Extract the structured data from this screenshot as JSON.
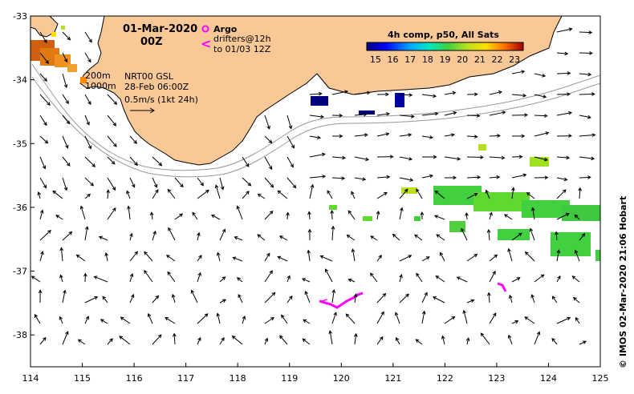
{
  "map": {
    "date_title": "01-Mar-2020",
    "time_title": "00Z",
    "legend_argo": "Argo",
    "legend_drifters_line1": "drifters@12h",
    "legend_drifters_line2": "to 01/03 12Z",
    "colorbar_title": "4h comp, p50, All Sats",
    "colorbar_ticks": [
      "15",
      "16",
      "17",
      "18",
      "19",
      "20",
      "21",
      "22",
      "23"
    ],
    "isobath_200": "200m",
    "isobath_1000": "1000m",
    "nrt_label": "NRT00 GSL",
    "nrt_date": "28-Feb 06:00Z",
    "scale_label": "0.5m/s (1kt 24h)",
    "credit": "© IMOS 02-Mar-2020 21:06 Hobart",
    "x_ticks": [
      "114",
      "115",
      "116",
      "117",
      "118",
      "119",
      "120",
      "121",
      "122",
      "123",
      "124",
      "125"
    ],
    "y_ticks": [
      "-33",
      "-34",
      "-35",
      "-36",
      "-37",
      "-38"
    ],
    "colors": {
      "land": "#f9c897",
      "coast": "#000000",
      "isobath": "#999999",
      "argo": "#ff00ff",
      "drifter": "#ff00ff"
    },
    "lon_range": [
      114,
      125
    ],
    "lat_range": [
      -38.5,
      -33
    ]
  }
}
